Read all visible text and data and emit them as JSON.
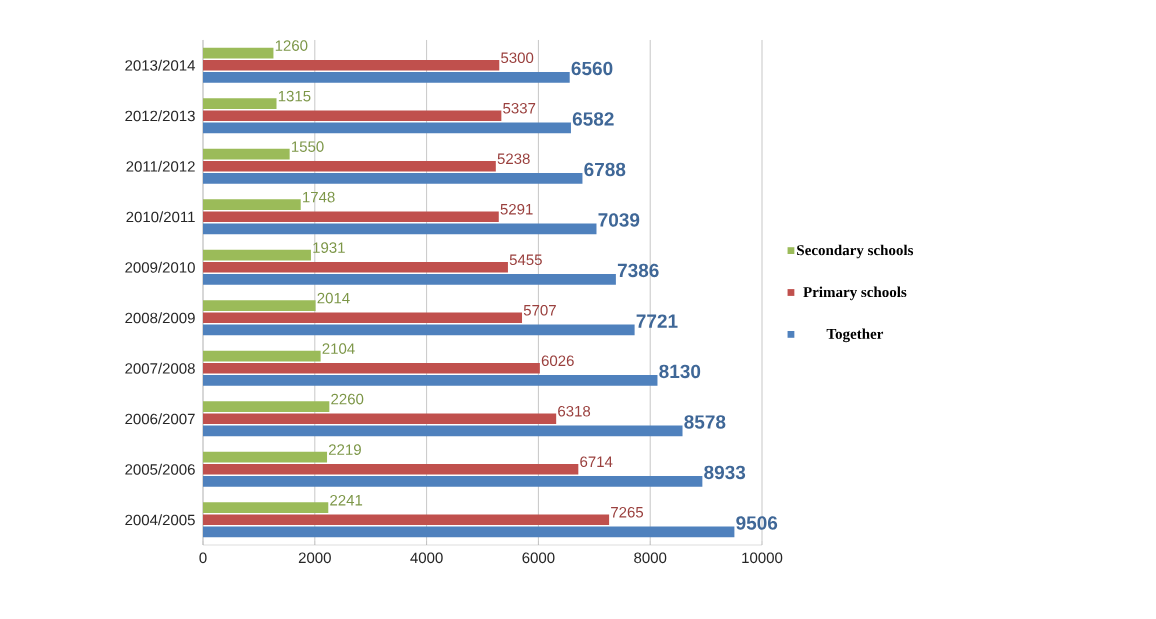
{
  "chart_data": {
    "type": "bar",
    "orientation": "horizontal",
    "categories": [
      "2013/2014",
      "2012/2013",
      "2011/2012",
      "2010/2011",
      "2009/2010",
      "2008/2009",
      "2007/2008",
      "2006/2007",
      "2005/2006",
      "2004/2005"
    ],
    "series": [
      {
        "name": "Secondary schools",
        "color": "#9bbb59",
        "values": [
          1260,
          1315,
          1550,
          1748,
          1931,
          2014,
          2104,
          2260,
          2219,
          2241
        ]
      },
      {
        "name": "Primary schools",
        "color": "#c0504d",
        "values": [
          5300,
          5337,
          5238,
          5291,
          5455,
          5707,
          6026,
          6318,
          6714,
          7265
        ]
      },
      {
        "name": "Together",
        "color": "#4f81bd",
        "values": [
          6560,
          6582,
          6788,
          7039,
          7386,
          7721,
          8130,
          8578,
          8933,
          9506
        ]
      }
    ],
    "xlim": [
      0,
      10000
    ],
    "xticks": [
      0,
      2000,
      4000,
      6000,
      8000,
      10000
    ],
    "grid": "x",
    "legend": "right",
    "data_labels": true
  }
}
